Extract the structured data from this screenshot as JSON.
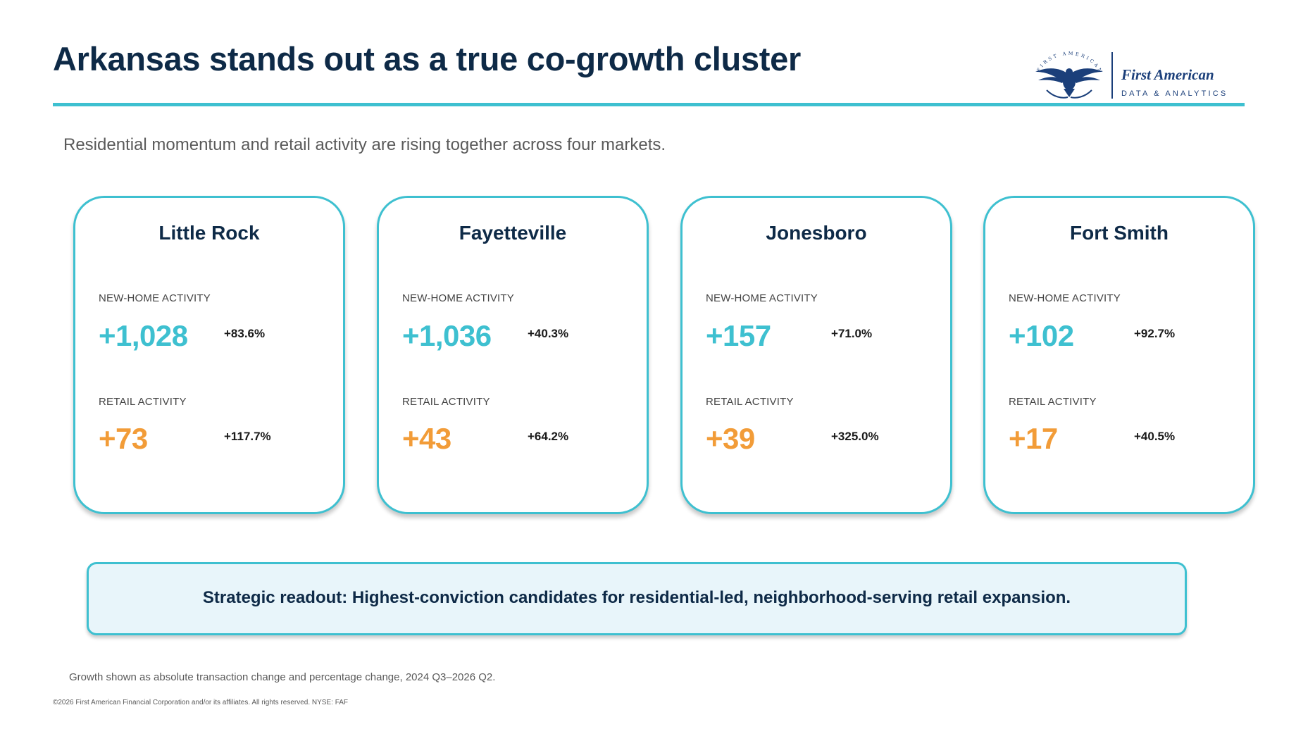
{
  "title": "Arkansas stands out as a true co-growth cluster",
  "logo": {
    "brand": "First American",
    "sub": "DATA & ANALYTICS",
    "ring_text": "FIRST AMERICAN"
  },
  "subtitle": "Residential momentum and retail activity are rising together across four markets.",
  "colors": {
    "accent": "#3ec0d0",
    "retail": "#f29c38",
    "navy": "#0e2a47",
    "readout_bg": "#e8f5fa"
  },
  "labels": {
    "new_home": "NEW-HOME ACTIVITY",
    "retail": "RETAIL ACTIVITY"
  },
  "markets": [
    {
      "city": "Little Rock",
      "home_abs": "+1,028",
      "home_pct": "+83.6%",
      "retail_abs": "+73",
      "retail_pct": "+117.7%"
    },
    {
      "city": "Fayetteville",
      "home_abs": "+1,036",
      "home_pct": "+40.3%",
      "retail_abs": "+43",
      "retail_pct": "+64.2%"
    },
    {
      "city": "Jonesboro",
      "home_abs": "+157",
      "home_pct": "+71.0%",
      "retail_abs": "+39",
      "retail_pct": "+325.0%"
    },
    {
      "city": "Fort Smith",
      "home_abs": "+102",
      "home_pct": "+92.7%",
      "retail_abs": "+17",
      "retail_pct": "+40.5%"
    }
  ],
  "readout": "Strategic readout: Highest-conviction candidates for residential-led, neighborhood-serving retail expansion.",
  "footnote": "Growth shown as absolute transaction change and percentage change, 2024 Q3–2026 Q2.",
  "copyright": "©2026 First American Financial Corporation and/or its affiliates. All rights reserved. NYSE: FAF"
}
